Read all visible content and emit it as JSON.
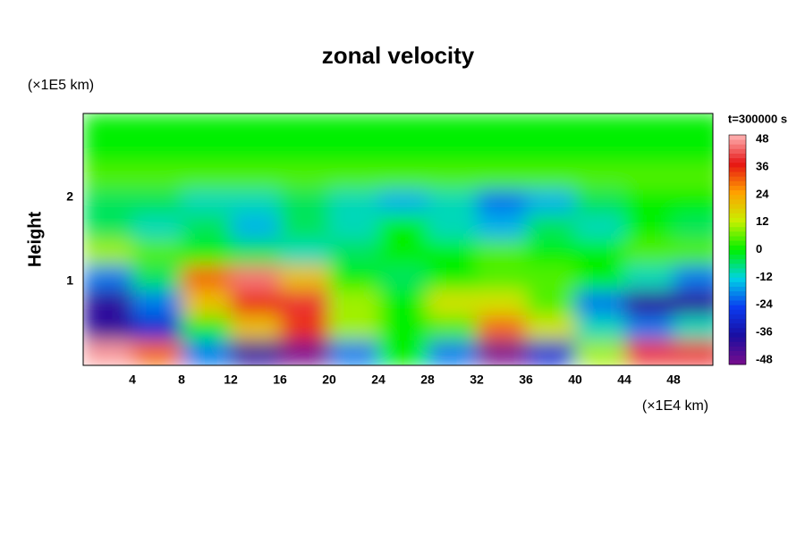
{
  "chart_data": {
    "type": "contour",
    "title": "zonal velocity",
    "y_label": "Height",
    "y_unit": "(×1E5 km)",
    "x_unit": "(×1E4 km)",
    "colorbar_title": "t=300000 s",
    "xlim": [
      0,
      51.2
    ],
    "xticks": [
      4,
      8,
      12,
      16,
      20,
      24,
      28,
      32,
      36,
      40,
      44,
      48
    ],
    "ylim": [
      0,
      3
    ],
    "yticks": [
      1,
      2
    ],
    "zlim": [
      -50,
      50
    ],
    "zticks": [
      48,
      36,
      24,
      12,
      0,
      -12,
      -24,
      -36,
      -48
    ],
    "colormap": [
      "#7a0d8c",
      "#1a0da0",
      "#0a3cf0",
      "#00d2e6",
      "#00f000",
      "#c8f000",
      "#ffa000",
      "#e61414",
      "#ffb4b4"
    ],
    "x": [
      2,
      6,
      10,
      14,
      18,
      22,
      26,
      30,
      34,
      38,
      42,
      46,
      50
    ],
    "y": [
      0.15,
      0.45,
      0.75,
      1.05,
      1.35,
      1.65,
      1.95,
      2.25,
      2.55,
      2.85
    ],
    "z": [
      [
        48,
        30,
        -20,
        -40,
        -50,
        -20,
        0,
        -20,
        -50,
        -30,
        10,
        40,
        40
      ],
      [
        -40,
        -30,
        0,
        20,
        35,
        10,
        0,
        5,
        30,
        15,
        -10,
        -20,
        -10
      ],
      [
        -40,
        -20,
        20,
        35,
        40,
        10,
        0,
        15,
        15,
        5,
        -20,
        -40,
        -40
      ],
      [
        -20,
        -5,
        30,
        45,
        20,
        0,
        -5,
        0,
        5,
        5,
        0,
        -10,
        -20
      ],
      [
        10,
        5,
        0,
        -5,
        -10,
        -5,
        0,
        0,
        5,
        0,
        0,
        5,
        5
      ],
      [
        -5,
        -10,
        -5,
        -15,
        -5,
        -10,
        0,
        -10,
        -15,
        -5,
        -10,
        0,
        -5
      ],
      [
        -5,
        -5,
        -10,
        -10,
        -5,
        -10,
        -15,
        -10,
        -20,
        -15,
        -5,
        0,
        0
      ],
      [
        5,
        5,
        5,
        5,
        5,
        5,
        5,
        5,
        5,
        5,
        5,
        5,
        5
      ],
      [
        0,
        0,
        0,
        0,
        0,
        0,
        0,
        0,
        0,
        0,
        0,
        0,
        0
      ],
      [
        0,
        0,
        0,
        0,
        0,
        0,
        0,
        0,
        0,
        0,
        0,
        0,
        0
      ]
    ]
  }
}
